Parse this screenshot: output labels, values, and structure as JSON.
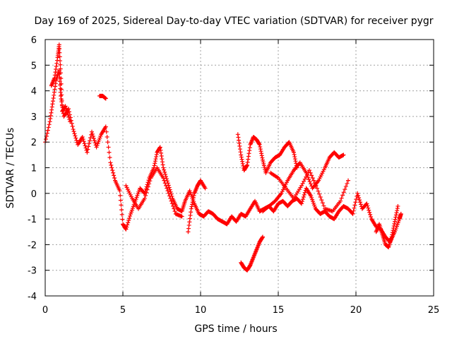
{
  "chart_data": {
    "type": "scatter",
    "title": "Day 169 of 2025, Sidereal Day-to-day VTEC variation (SDTVAR) for receiver pygr",
    "xlabel": "GPS time / hours",
    "ylabel": "SDTVAR / TECUs",
    "xlim": [
      0,
      25
    ],
    "ylim": [
      -4,
      6
    ],
    "xticks": [
      "0",
      "5",
      "10",
      "15",
      "20",
      "25"
    ],
    "yticks": [
      "-4",
      "-3",
      "-2",
      "-1",
      "0",
      "1",
      "2",
      "3",
      "4",
      "5",
      "6"
    ],
    "grid": true,
    "marker": "+",
    "series": [
      {
        "name": "SDTVAR",
        "color": "#ff0000",
        "segments": [
          {
            "x": [
              0.0,
              0.3,
              0.5,
              0.7,
              0.9,
              1.0,
              1.2,
              1.5,
              1.8,
              2.1,
              2.4,
              2.7,
              3.0,
              3.3,
              3.6,
              3.9,
              4.2,
              4.5,
              4.8,
              5.0,
              5.2,
              5.5,
              5.8,
              6.1,
              6.4,
              6.7,
              7.0,
              7.2,
              7.4,
              7.6,
              7.9,
              8.2,
              8.5,
              8.8,
              9.0,
              9.3,
              9.6,
              9.9,
              10.2,
              10.5,
              10.8,
              11.1,
              11.4,
              11.7,
              12.0,
              12.3,
              12.6,
              12.9,
              13.2,
              13.5,
              13.8,
              14.1,
              14.4,
              14.7,
              15.0,
              15.3,
              15.6,
              15.9,
              16.2,
              16.5,
              16.8,
              17.1,
              17.4,
              17.7,
              18.0,
              18.3,
              18.6,
              18.9,
              19.2,
              19.5,
              19.8,
              20.1,
              20.4,
              20.7,
              21.0,
              21.3,
              21.6,
              21.9,
              22.2,
              22.5,
              22.8,
              22.9
            ],
            "y": [
              2.0,
              2.8,
              3.6,
              4.4,
              4.8,
              3.8,
              3.0,
              3.3,
              2.5,
              1.9,
              2.2,
              1.6,
              2.4,
              1.8,
              2.3,
              2.6,
              1.2,
              0.5,
              0.1,
              -1.2,
              -1.4,
              -0.8,
              -0.3,
              0.2,
              0.0,
              0.6,
              1.0,
              1.6,
              1.8,
              1.0,
              0.4,
              -0.2,
              -0.6,
              -0.7,
              -0.3,
              0.1,
              -0.4,
              -0.8,
              -0.9,
              -0.7,
              -0.8,
              -1.0,
              -1.1,
              -1.2,
              -0.9,
              -1.1,
              -0.8,
              -0.9,
              -0.6,
              -0.3,
              -0.7,
              -0.6,
              -0.5,
              -0.7,
              -0.4,
              -0.3,
              -0.5,
              -0.3,
              -0.2,
              -0.4,
              0.2,
              -0.1,
              -0.6,
              -0.8,
              -0.7,
              -0.9,
              -1.0,
              -0.7,
              -0.5,
              -0.6,
              -0.8,
              0.0,
              -0.6,
              -0.4,
              -1.0,
              -1.3,
              -1.4,
              -1.7,
              -1.9,
              -1.5,
              -1.0,
              -0.8
            ]
          },
          {
            "x": [
              0.4,
              0.6,
              0.8,
              0.9,
              1.0,
              1.1,
              1.3,
              1.6
            ],
            "y": [
              4.2,
              4.5,
              5.3,
              5.8,
              4.7,
              3.2,
              3.4,
              2.8
            ]
          },
          {
            "x": [
              3.5,
              3.7,
              3.9
            ],
            "y": [
              3.8,
              3.8,
              3.7
            ]
          },
          {
            "x": [
              5.2,
              5.6,
              6.0,
              6.4,
              6.8,
              7.2,
              7.6,
              8.0,
              8.4,
              8.8
            ],
            "y": [
              0.3,
              -0.2,
              -0.6,
              -0.2,
              0.6,
              1.0,
              0.6,
              -0.1,
              -0.8,
              -0.9
            ]
          },
          {
            "x": [
              9.2,
              9.4,
              9.6,
              9.8,
              10.0,
              10.3
            ],
            "y": [
              -1.5,
              -0.6,
              0.0,
              0.3,
              0.5,
              0.2
            ]
          },
          {
            "x": [
              12.4,
              12.6,
              12.8,
              13.0,
              13.2,
              13.4,
              13.6,
              13.8,
              14.0,
              14.2,
              14.5,
              14.8,
              15.1,
              15.4,
              15.7,
              16.0,
              16.2
            ],
            "y": [
              2.3,
              1.5,
              0.9,
              1.1,
              1.9,
              2.2,
              2.1,
              1.9,
              1.3,
              0.8,
              1.2,
              1.4,
              1.5,
              1.8,
              2.0,
              1.6,
              1.0
            ]
          },
          {
            "x": [
              14.0,
              14.4,
              14.8,
              15.2,
              15.6,
              16.0,
              16.4,
              16.8,
              17.2,
              17.6,
              18.0,
              18.3,
              18.6,
              18.9,
              19.2
            ],
            "y": [
              -0.7,
              -0.5,
              -0.3,
              0.0,
              0.5,
              0.9,
              1.2,
              0.8,
              0.2,
              0.5,
              1.0,
              1.4,
              1.6,
              1.4,
              1.5
            ]
          },
          {
            "x": [
              14.5,
              15.0,
              15.5,
              16.0,
              16.5,
              17.0,
              17.5,
              18.0,
              18.5,
              19.0,
              19.5
            ],
            "y": [
              0.8,
              0.6,
              0.2,
              -0.2,
              0.3,
              0.9,
              0.2,
              -0.6,
              -0.7,
              -0.3,
              0.5
            ]
          },
          {
            "x": [
              12.6,
              12.8,
              13.0,
              13.2,
              13.4,
              13.6,
              13.8,
              14.0
            ],
            "y": [
              -2.7,
              -2.9,
              -3.0,
              -2.8,
              -2.5,
              -2.2,
              -1.9,
              -1.7
            ]
          },
          {
            "x": [
              21.3,
              21.5,
              21.7,
              21.9,
              22.1,
              22.3,
              22.5,
              22.7
            ],
            "y": [
              -1.5,
              -1.2,
              -1.6,
              -2.0,
              -2.1,
              -1.7,
              -1.1,
              -0.5
            ]
          }
        ]
      }
    ]
  }
}
